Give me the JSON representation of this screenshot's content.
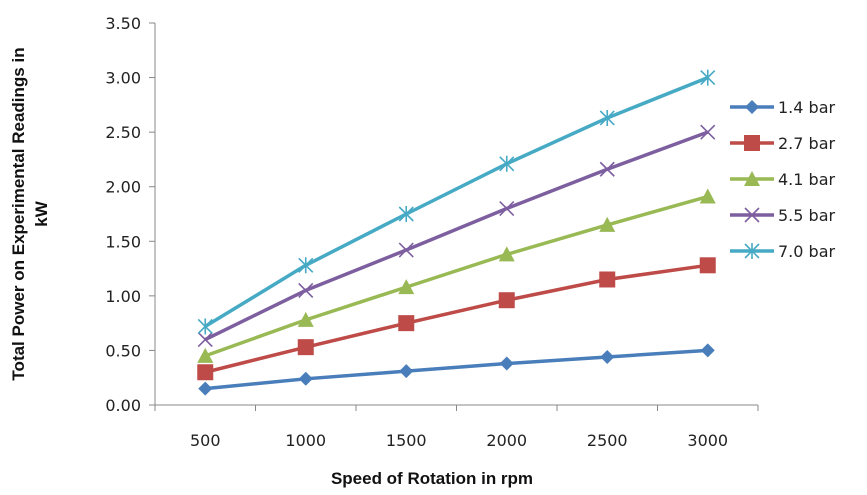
{
  "chart_data": {
    "type": "line",
    "title": "",
    "xlabel": "Speed of Rotation in rpm",
    "ylabel_lines": [
      "Total Power on Experimental Readings in",
      "kW"
    ],
    "categories": [
      "500",
      "1000",
      "1500",
      "2000",
      "2500",
      "3000"
    ],
    "y_ticks": [
      "0.00",
      "0.50",
      "1.00",
      "1.50",
      "2.00",
      "2.50",
      "3.00",
      "3.50"
    ],
    "ylim": [
      0,
      3.5
    ],
    "grid": false,
    "legend_position": "right",
    "series": [
      {
        "name": "1.4 bar",
        "color": "#4a7ebb",
        "marker": "diamond",
        "values": [
          0.15,
          0.24,
          0.31,
          0.38,
          0.44,
          0.5
        ]
      },
      {
        "name": "2.7 bar",
        "color": "#be4b48",
        "marker": "square",
        "values": [
          0.3,
          0.53,
          0.75,
          0.96,
          1.15,
          1.28
        ]
      },
      {
        "name": "4.1 bar",
        "color": "#98b954",
        "marker": "triangle",
        "values": [
          0.45,
          0.78,
          1.08,
          1.38,
          1.65,
          1.91
        ]
      },
      {
        "name": "5.5 bar",
        "color": "#7d5fa0",
        "marker": "x",
        "values": [
          0.6,
          1.05,
          1.42,
          1.8,
          2.16,
          2.5
        ]
      },
      {
        "name": "7.0 bar",
        "color": "#46aac5",
        "marker": "star",
        "values": [
          0.72,
          1.28,
          1.75,
          2.21,
          2.63,
          3.0
        ]
      }
    ]
  }
}
